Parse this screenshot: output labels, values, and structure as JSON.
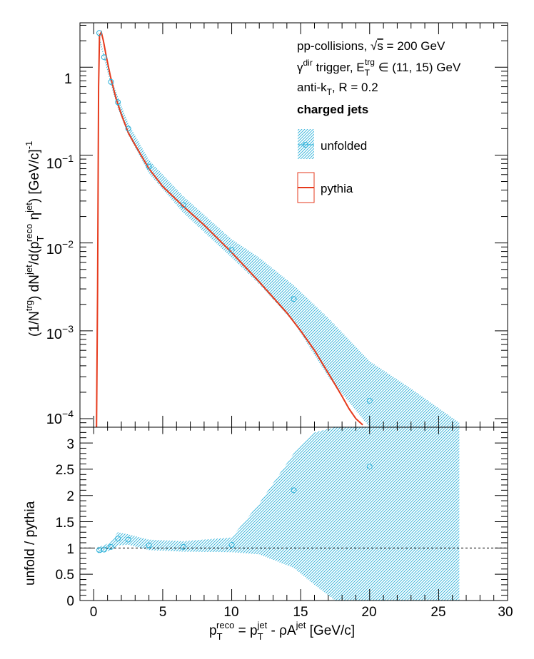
{
  "chart_data": [
    {
      "type": "scatter",
      "panel": "spectrum",
      "ylabel": "(1/N^trg) dN^jet/d(p_T^reco η^jet) [GeV/c]^-1",
      "yscale": "log",
      "xlim": [
        -1,
        30
      ],
      "ylim": [
        8e-05,
        3.2
      ],
      "ytick_labels": [
        "1",
        "10^-1",
        "10^-2",
        "10^-3",
        "10^-4"
      ],
      "xtick_labels": [
        "0",
        "5",
        "10",
        "15",
        "20",
        "25",
        "30"
      ],
      "annotations": [
        "pp-collisions, √s = 200 GeV",
        "γ^dir trigger, E_T^trg ∈ (11, 15) GeV",
        "anti-k_T, R = 0.2",
        "charged jets"
      ],
      "legend": {
        "position": "top-right",
        "entries": [
          "unfolded",
          "pythia"
        ]
      },
      "series": [
        {
          "name": "unfolded",
          "color": "#2ab0d9",
          "points": [
            {
              "x": 0.4,
              "y": 2.45
            },
            {
              "x": 0.75,
              "y": 1.3
            },
            {
              "x": 1.25,
              "y": 0.68
            },
            {
              "x": 1.75,
              "y": 0.4
            },
            {
              "x": 2.5,
              "y": 0.2
            },
            {
              "x": 4.0,
              "y": 0.074
            },
            {
              "x": 6.5,
              "y": 0.027
            },
            {
              "x": 10.0,
              "y": 0.0083
            },
            {
              "x": 14.5,
              "y": 0.0023
            },
            {
              "x": 20.0,
              "y": 0.00016
            }
          ],
          "band": [
            [
              0.3,
              2.3,
              2.6
            ],
            [
              0.75,
              1.25,
              1.4
            ],
            [
              1.25,
              0.62,
              0.78
            ],
            [
              1.75,
              0.34,
              0.46
            ],
            [
              2.5,
              0.17,
              0.23
            ],
            [
              4.0,
              0.062,
              0.088
            ],
            [
              6.5,
              0.022,
              0.034
            ],
            [
              10.0,
              0.0068,
              0.011
            ],
            [
              12.0,
              0.0034,
              0.0068
            ],
            [
              14.5,
              0.00125,
              0.0033
            ],
            [
              17.0,
              0.0003,
              0.0014
            ],
            [
              20.0,
              8e-05,
              0.00045
            ],
            [
              23.0,
              8e-05,
              0.00022
            ],
            [
              26.5,
              8e-05,
              9e-05
            ]
          ]
        },
        {
          "name": "pythia",
          "color": "#e63a1c",
          "x": [
            0.2,
            0.28,
            0.35,
            0.42,
            0.55,
            0.7,
            0.9,
            1.2,
            1.6,
            2.0,
            2.5,
            3.0,
            4.0,
            5.0,
            6.5,
            8.0,
            10.0,
            12.0,
            14.0,
            15.0,
            16.0,
            17.0,
            18.0,
            18.5,
            19.0,
            19.5
          ],
          "y": [
            8e-05,
            0.003,
            0.6,
            2.3,
            2.5,
            2.0,
            1.35,
            0.8,
            0.45,
            0.29,
            0.18,
            0.13,
            0.07,
            0.044,
            0.026,
            0.016,
            0.0078,
            0.0036,
            0.0016,
            0.001,
            0.0006,
            0.00033,
            0.00018,
            0.00013,
            0.0001,
            8.5e-05
          ]
        }
      ]
    },
    {
      "type": "scatter",
      "panel": "ratio",
      "xlabel": "p_T^reco = p_T^jet - ρA^jet [GeV/c]",
      "ylabel": "unfold / pythia",
      "xlim": [
        -1,
        30
      ],
      "ylim": [
        0,
        3.3
      ],
      "ytick_labels": [
        "0",
        "0.5",
        "1",
        "1.5",
        "2",
        "2.5",
        "3"
      ],
      "xtick_labels": [
        "0",
        "5",
        "10",
        "15",
        "20",
        "25",
        "30"
      ],
      "reference_line": 1,
      "series": [
        {
          "name": "unfold / pythia",
          "color": "#2ab0d9",
          "points": [
            {
              "x": 0.4,
              "y": 0.96
            },
            {
              "x": 0.75,
              "y": 0.97
            },
            {
              "x": 1.25,
              "y": 1.02
            },
            {
              "x": 1.75,
              "y": 1.18
            },
            {
              "x": 2.5,
              "y": 1.16
            },
            {
              "x": 4.0,
              "y": 1.05
            },
            {
              "x": 6.5,
              "y": 1.02
            },
            {
              "x": 10.0,
              "y": 1.06
            },
            {
              "x": 14.5,
              "y": 2.1
            },
            {
              "x": 20.0,
              "y": 2.55
            }
          ],
          "band": [
            [
              0.3,
              0.9,
              1.02
            ],
            [
              0.75,
              0.92,
              1.05
            ],
            [
              1.25,
              0.96,
              1.12
            ],
            [
              1.75,
              1.05,
              1.3
            ],
            [
              2.5,
              1.06,
              1.26
            ],
            [
              4.0,
              0.96,
              1.16
            ],
            [
              6.5,
              0.93,
              1.13
            ],
            [
              10.0,
              0.92,
              1.2
            ],
            [
              12.0,
              0.88,
              1.85
            ],
            [
              14.5,
              0.62,
              2.8
            ],
            [
              16.0,
              0.3,
              3.2
            ],
            [
              17.5,
              0.0,
              3.3
            ],
            [
              20.0,
              0.0,
              3.3
            ],
            [
              23.0,
              0.0,
              3.3
            ],
            [
              26.5,
              0.0,
              3.3
            ]
          ]
        }
      ]
    }
  ]
}
